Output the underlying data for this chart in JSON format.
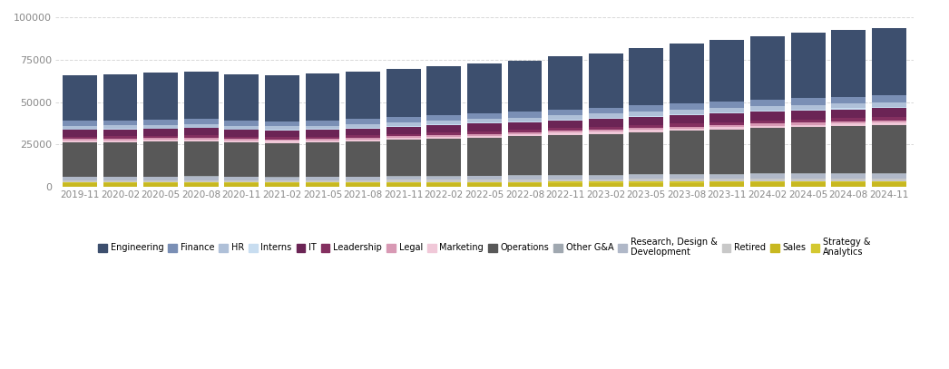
{
  "categories": [
    "2019-11",
    "2020-02",
    "2020-05",
    "2020-08",
    "2020-11",
    "2021-02",
    "2021-05",
    "2021-08",
    "2021-11",
    "2022-02",
    "2022-05",
    "2022-08",
    "2022-11",
    "2023-02",
    "2023-05",
    "2023-08",
    "2023-11",
    "2024-02",
    "2024-05",
    "2024-08",
    "2024-11"
  ],
  "roles": [
    "Sales",
    "Strategy &\nAnalytics",
    "Retired",
    "Research, Design &\nDevelopment",
    "Other G&A",
    "Operations",
    "Marketing",
    "Legal",
    "Leadership",
    "IT",
    "Interns",
    "HR",
    "Finance",
    "Engineering"
  ],
  "legend_roles": [
    "Engineering",
    "Finance",
    "HR",
    "Interns",
    "IT",
    "Leadership",
    "Legal",
    "Marketing",
    "Operations",
    "Other G&A",
    "Research, Design &\nDevelopment",
    "Retired",
    "Sales",
    "Strategy &\nAnalytics"
  ],
  "colors": [
    "#c8b820",
    "#d4c830",
    "#c8c8c8",
    "#b0b8c8",
    "#a0a8b0",
    "#585858",
    "#f0c8d8",
    "#d899b4",
    "#843060",
    "#6b2455",
    "#c8ddf0",
    "#afc0d8",
    "#7a8fb5",
    "#3d4f6e"
  ],
  "legend_colors": [
    "#3d4f6e",
    "#7a8fb5",
    "#afc0d8",
    "#c8ddf0",
    "#6b2455",
    "#843060",
    "#d899b4",
    "#f0c8d8",
    "#585858",
    "#a0a8b0",
    "#b0b8c8",
    "#c8c8c8",
    "#c8b820",
    "#d4c830"
  ],
  "data": {
    "Sales": [
      2000,
      2020,
      2050,
      2070,
      2000,
      1980,
      2000,
      2040,
      2100,
      2140,
      2200,
      2240,
      2300,
      2350,
      2400,
      2450,
      2500,
      2550,
      2580,
      2610,
      2630
    ],
    "Strategy &\nAnalytics": [
      700,
      705,
      710,
      715,
      700,
      695,
      700,
      710,
      730,
      745,
      765,
      780,
      800,
      815,
      835,
      850,
      870,
      885,
      895,
      905,
      915
    ],
    "Retired": [
      1200,
      1210,
      1220,
      1230,
      1210,
      1200,
      1210,
      1220,
      1260,
      1280,
      1310,
      1340,
      1380,
      1410,
      1450,
      1480,
      1510,
      1540,
      1560,
      1580,
      1600
    ],
    "Research, Design &\nDevelopment": [
      1800,
      1815,
      1830,
      1845,
      1820,
      1800,
      1820,
      1845,
      1900,
      1940,
      1990,
      2030,
      2090,
      2140,
      2200,
      2260,
      2310,
      2370,
      2400,
      2430,
      2460
    ],
    "Other G&A": [
      400,
      405,
      410,
      415,
      405,
      400,
      405,
      410,
      425,
      435,
      450,
      460,
      480,
      495,
      510,
      525,
      540,
      555,
      565,
      575,
      585
    ],
    "Operations": [
      20000,
      20200,
      20500,
      20700,
      20100,
      19900,
      20100,
      20600,
      21200,
      21700,
      22300,
      22900,
      23600,
      24100,
      24800,
      25400,
      26100,
      26700,
      27200,
      27700,
      28200
    ],
    "Marketing": [
      1100,
      1110,
      1120,
      1130,
      1110,
      1100,
      1110,
      1125,
      1160,
      1185,
      1215,
      1240,
      1280,
      1310,
      1345,
      1375,
      1410,
      1440,
      1460,
      1480,
      1500
    ],
    "Legal": [
      950,
      960,
      970,
      980,
      960,
      950,
      960,
      975,
      1000,
      1020,
      1050,
      1075,
      1105,
      1130,
      1160,
      1185,
      1215,
      1240,
      1255,
      1270,
      1285
    ],
    "Leadership": [
      1400,
      1415,
      1425,
      1440,
      1415,
      1400,
      1415,
      1435,
      1475,
      1505,
      1545,
      1580,
      1625,
      1660,
      1705,
      1745,
      1790,
      1830,
      1855,
      1880,
      1900
    ],
    "IT": [
      4000,
      4040,
      4090,
      4130,
      4040,
      4000,
      4040,
      4095,
      4210,
      4295,
      4410,
      4500,
      4630,
      4730,
      4860,
      4970,
      5090,
      5200,
      5265,
      5330,
      5390
    ],
    "Interns": [
      400,
      380,
      150,
      80,
      150,
      250,
      350,
      420,
      500,
      510,
      580,
      420,
      580,
      580,
      660,
      580,
      580,
      580,
      620,
      580,
      540
    ],
    "HR": [
      2000,
      2020,
      2050,
      2070,
      2030,
      2010,
      2030,
      2060,
      2120,
      2165,
      2220,
      2270,
      2340,
      2390,
      2455,
      2510,
      2575,
      2635,
      2670,
      2705,
      2735
    ],
    "Finance": [
      3000,
      3030,
      3070,
      3100,
      3040,
      3010,
      3040,
      3080,
      3170,
      3235,
      3320,
      3395,
      3490,
      3570,
      3665,
      3750,
      3845,
      3935,
      3985,
      4035,
      4080
    ],
    "Engineering": [
      27000,
      27200,
      28000,
      28300,
      27500,
      27200,
      27500,
      28000,
      28500,
      28800,
      29500,
      30000,
      31200,
      32200,
      33800,
      35400,
      36400,
      37500,
      38500,
      39500,
      40000
    ]
  },
  "ylim": [
    0,
    100000
  ],
  "yticks": [
    0,
    25000,
    50000,
    75000,
    100000
  ],
  "background_color": "#ffffff",
  "grid_color": "#d8d8d8"
}
